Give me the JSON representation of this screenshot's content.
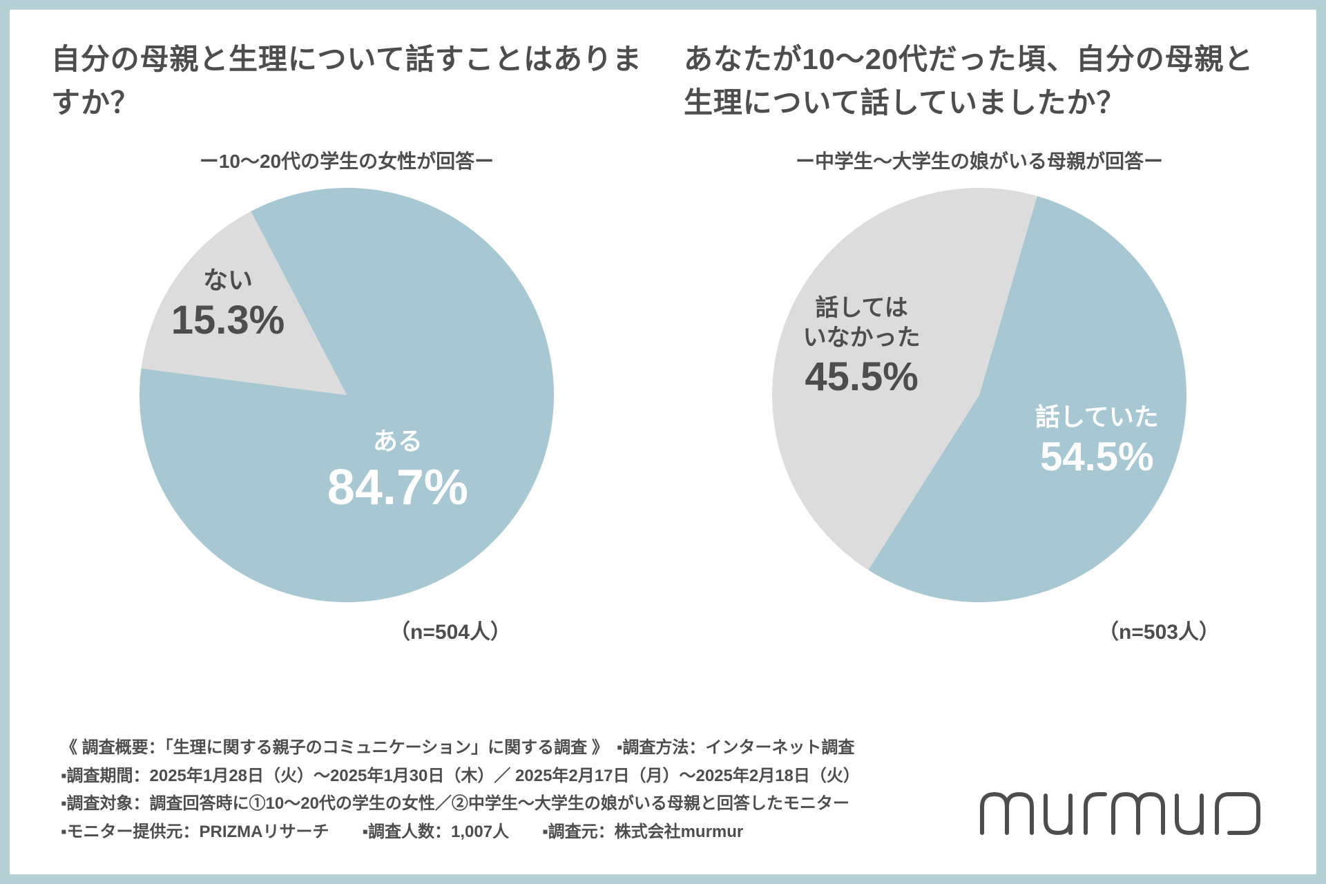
{
  "frame": {
    "border_color": "#b4d0d5"
  },
  "text_color": "#4d4d4d",
  "left": {
    "title": "自分の母親と生理について話すことはありますか？",
    "subtitle": "ー10～20代の学生の女性が回答ー",
    "n_label": "（n=504人）",
    "chart": {
      "type": "pie",
      "radius": 300,
      "start_angle_deg": -27.54,
      "slices": [
        {
          "key": "yes",
          "label": "ある",
          "value": 84.7,
          "pct_text": "84.7%",
          "color": "#a7c8d2",
          "text_color": "#ffffff"
        },
        {
          "key": "no",
          "label": "ない",
          "value": 15.3,
          "pct_text": "15.3%",
          "color": "#dcdcdc",
          "text_color": "#4d4d4d"
        }
      ]
    }
  },
  "right": {
    "title": "あなたが10～20代だった頃、自分の母親と生理について話していましたか？",
    "subtitle": "ー中学生～大学生の娘がいる母親が回答ー",
    "n_label": "（n=503人）",
    "chart": {
      "type": "pie",
      "radius": 300,
      "start_angle_deg": 16.2,
      "slices": [
        {
          "key": "yes",
          "label": "話していた",
          "value": 54.5,
          "pct_text": "54.5%",
          "color": "#a7c8d2",
          "text_color": "#ffffff"
        },
        {
          "key": "no",
          "label": "話しては\nいなかった",
          "value": 45.5,
          "pct_text": "45.5%",
          "color": "#dcdcdc",
          "text_color": "#4d4d4d"
        }
      ]
    }
  },
  "footer": {
    "lines": [
      "《 調査概要：「生理に関する親子のコミュニケーション」に関する調査 》　▪調査方法：インターネット調査",
      "▪調査期間：2025年1月28日（火）～2025年1月30日（木）／ 2025年2月17日（月）～2025年2月18日（火）",
      "▪調査対象：調査回答時に①10～20代の学生の女性／②中学生～大学生の娘がいる母親と回答したモニター",
      "▪モニター提供元：PRIZMAリサーチ　　▪調査人数：1,007人　　▪調査元：株式会社murmur"
    ]
  },
  "brand": {
    "name": "murmur",
    "color": "#4d4d4d"
  }
}
